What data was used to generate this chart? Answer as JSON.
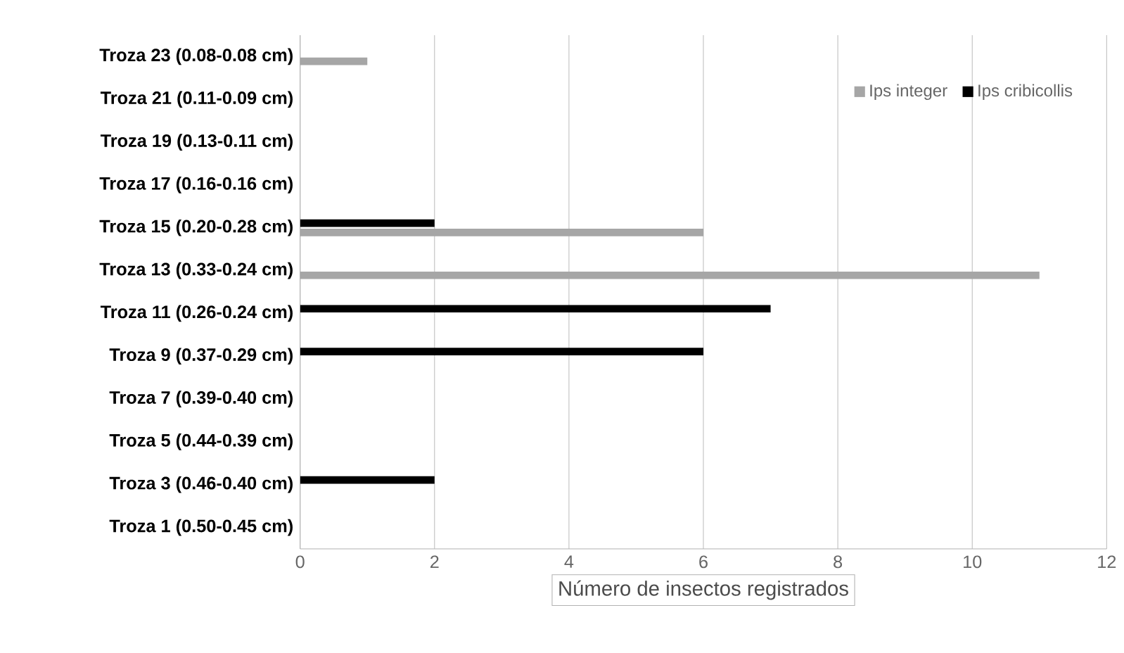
{
  "chart_data": {
    "type": "bar",
    "orientation": "horizontal",
    "xlabel": "Número de insectos registrados",
    "categories": [
      "Troza 23 (0.08-0.08 cm)",
      "Troza 21 (0.11-0.09 cm)",
      "Troza 19 (0.13-0.11 cm)",
      "Troza 17 (0.16-0.16 cm)",
      "Troza 15 (0.20-0.28 cm)",
      "Troza 13 (0.33-0.24 cm)",
      "Troza 11 (0.26-0.24 cm)",
      "Troza 9 (0.37-0.29 cm)",
      "Troza 7 (0.39-0.40 cm)",
      "Troza 5 (0.44-0.39 cm)",
      "Troza 3 (0.46-0.40 cm)",
      "Troza 1 (0.50-0.45 cm)"
    ],
    "series": [
      {
        "name": "Ips integer",
        "color": "#a6a6a6",
        "values": [
          1,
          0,
          0,
          0,
          6,
          11,
          0,
          0,
          0,
          0,
          0,
          0
        ]
      },
      {
        "name": "Ips cribicollis",
        "color": "#000000",
        "values": [
          0,
          0,
          0,
          0,
          2,
          0,
          7,
          6,
          0,
          0,
          2,
          0
        ]
      }
    ],
    "xlim": [
      0,
      12
    ],
    "xticks": [
      0,
      2,
      4,
      6,
      8,
      10,
      12
    ],
    "grid": "x",
    "legend": "top right"
  }
}
